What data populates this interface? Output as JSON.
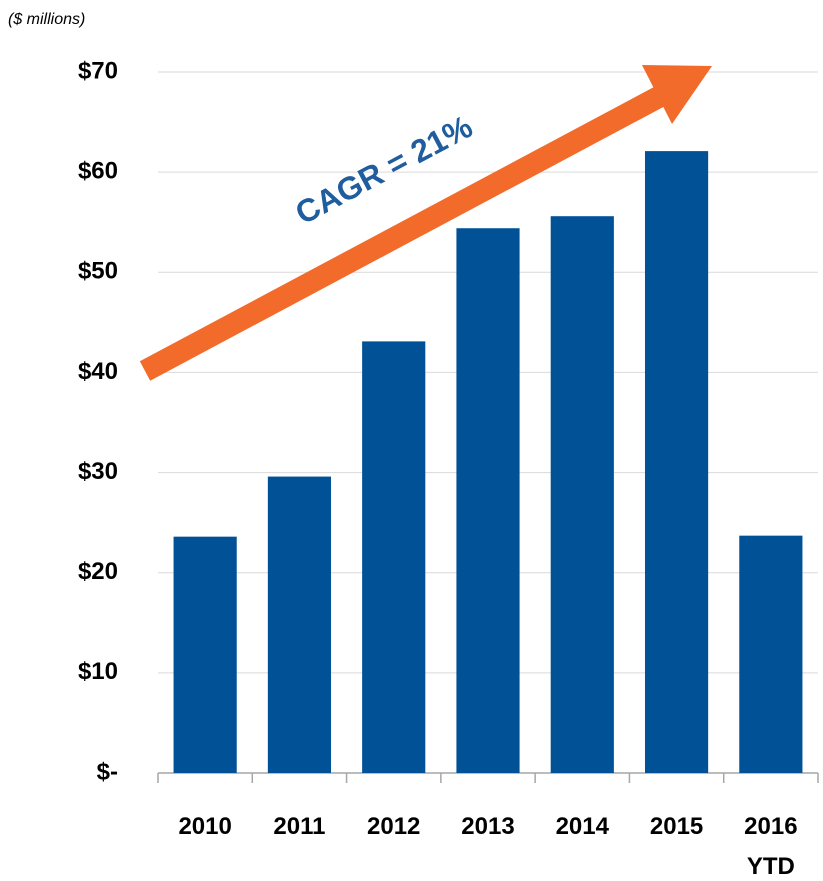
{
  "chart_data": {
    "type": "bar",
    "subtitle": "($ millions)",
    "annotation": "CAGR = 21%",
    "categories": [
      "2010",
      "2011",
      "2012",
      "2013",
      "2014",
      "2015",
      "2016 YTD"
    ],
    "values": [
      23.6,
      29.6,
      43.1,
      54.4,
      55.6,
      62.1,
      23.7
    ],
    "color": "#005196",
    "ylim": [
      0,
      70
    ],
    "yticks": [
      {
        "value": 0,
        "label": "$-"
      },
      {
        "value": 10,
        "label": "$10"
      },
      {
        "value": 20,
        "label": "$20"
      },
      {
        "value": 30,
        "label": "$30"
      },
      {
        "value": 40,
        "label": "$40"
      },
      {
        "value": 50,
        "label": "$50"
      },
      {
        "value": 60,
        "label": "$60"
      },
      {
        "value": 70,
        "label": "$70"
      }
    ],
    "grid": true
  }
}
